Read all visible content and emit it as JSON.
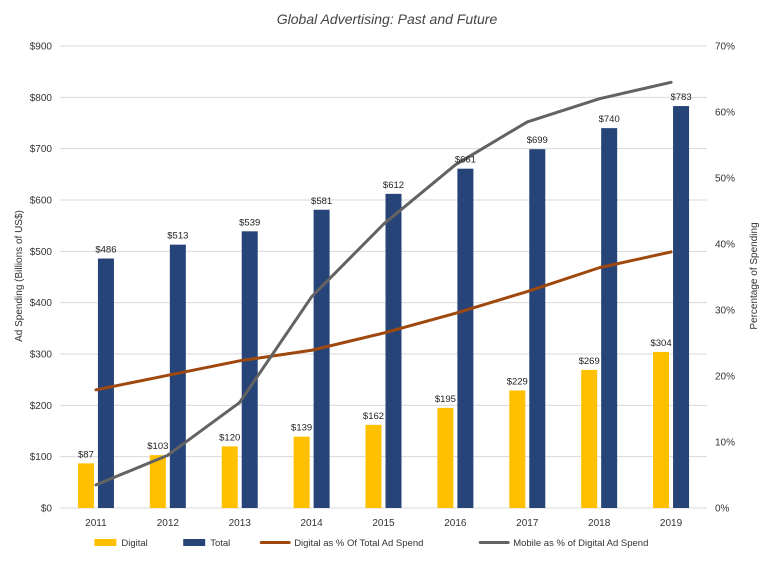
{
  "chart_data": {
    "type": "bar",
    "title": "Global Advertising: Past and Future",
    "ylabel": "Ad Spending (Billions of US$)",
    "y2label": "Percentage of Spending",
    "categories": [
      "2011",
      "2012",
      "2013",
      "2014",
      "2015",
      "2016",
      "2017",
      "2018",
      "2019"
    ],
    "ylim": [
      0,
      900
    ],
    "yticks": [
      0,
      100,
      200,
      300,
      400,
      500,
      600,
      700,
      800,
      900
    ],
    "ytick_labels": [
      "$0",
      "$100",
      "$200",
      "$300",
      "$400",
      "$500",
      "$600",
      "$700",
      "$800",
      "$900"
    ],
    "y2lim": [
      0,
      70
    ],
    "y2ticks": [
      0,
      10,
      20,
      30,
      40,
      50,
      60,
      70
    ],
    "y2tick_labels": [
      "0%",
      "10%",
      "20%",
      "30%",
      "40%",
      "50%",
      "60%",
      "70%"
    ],
    "grid": true,
    "legend_position": "bottom",
    "series": [
      {
        "name": "Digital",
        "kind": "bar",
        "axis": "left",
        "color": "#FFC000",
        "values": [
          87,
          103,
          120,
          139,
          162,
          195,
          229,
          269,
          304
        ],
        "labels": [
          "$87",
          "$103",
          "$120",
          "$139",
          "$162",
          "$195",
          "$229",
          "$269",
          "$304"
        ]
      },
      {
        "name": "Total",
        "kind": "bar",
        "axis": "left",
        "color": "#264478",
        "values": [
          486,
          513,
          539,
          581,
          612,
          661,
          699,
          740,
          783
        ],
        "labels": [
          "$486",
          "$513",
          "$539",
          "$581",
          "$612",
          "$661",
          "$699",
          "$740",
          "$783"
        ]
      },
      {
        "name": "Digital as % Of Total Ad Spend",
        "kind": "line",
        "axis": "right",
        "color": "#9E480E",
        "values": [
          17.9,
          20.1,
          22.3,
          23.9,
          26.5,
          29.5,
          32.8,
          36.4,
          38.8
        ]
      },
      {
        "name": "Mobile as % of Digital Ad Spend",
        "kind": "line",
        "axis": "right",
        "color": "#636363",
        "values": [
          3.5,
          8,
          16,
          32,
          43,
          52,
          58.5,
          62,
          64.5
        ]
      }
    ]
  }
}
